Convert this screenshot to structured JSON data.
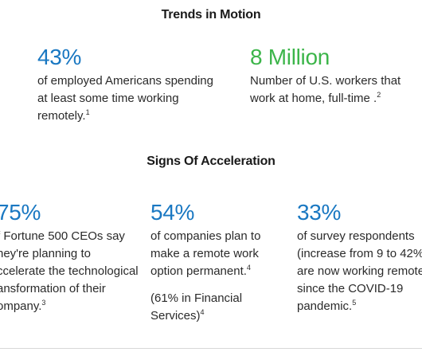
{
  "colors": {
    "blue": "#1a78c2",
    "green": "#3cb54a",
    "text": "#2a2a2a"
  },
  "trends": {
    "title": "Trends in Motion",
    "stats": [
      {
        "value": "43%",
        "lines": [
          "of employed Americans spending",
          "at least some time working",
          "remotely."
        ],
        "footnote": "1"
      },
      {
        "value": "8 Million",
        "lines": [
          "Number of U.S. workers that",
          "work at home, full-time ."
        ],
        "footnote": "2"
      }
    ]
  },
  "acceleration": {
    "title": "Signs Of Acceleration",
    "stats": [
      {
        "value": "75%",
        "lines": [
          "f Fortune 500 CEOs say",
          "hey're planning to",
          "ccelerate the technological",
          "ansformation of their",
          "ompany."
        ],
        "footnote": "3"
      },
      {
        "value": "54%",
        "lines": [
          "of companies plan to",
          "make a remote work",
          "option permanent."
        ],
        "footnote": "4",
        "note_lines": [
          "(61% in Financial",
          "Services)"
        ],
        "note_footnote": "4"
      },
      {
        "value": "33%",
        "lines": [
          "of survey respondents",
          "(increase from 9 to 42%)",
          "are now working remote",
          "since the COVID-19",
          "pandemic."
        ],
        "footnote": "5"
      }
    ]
  }
}
